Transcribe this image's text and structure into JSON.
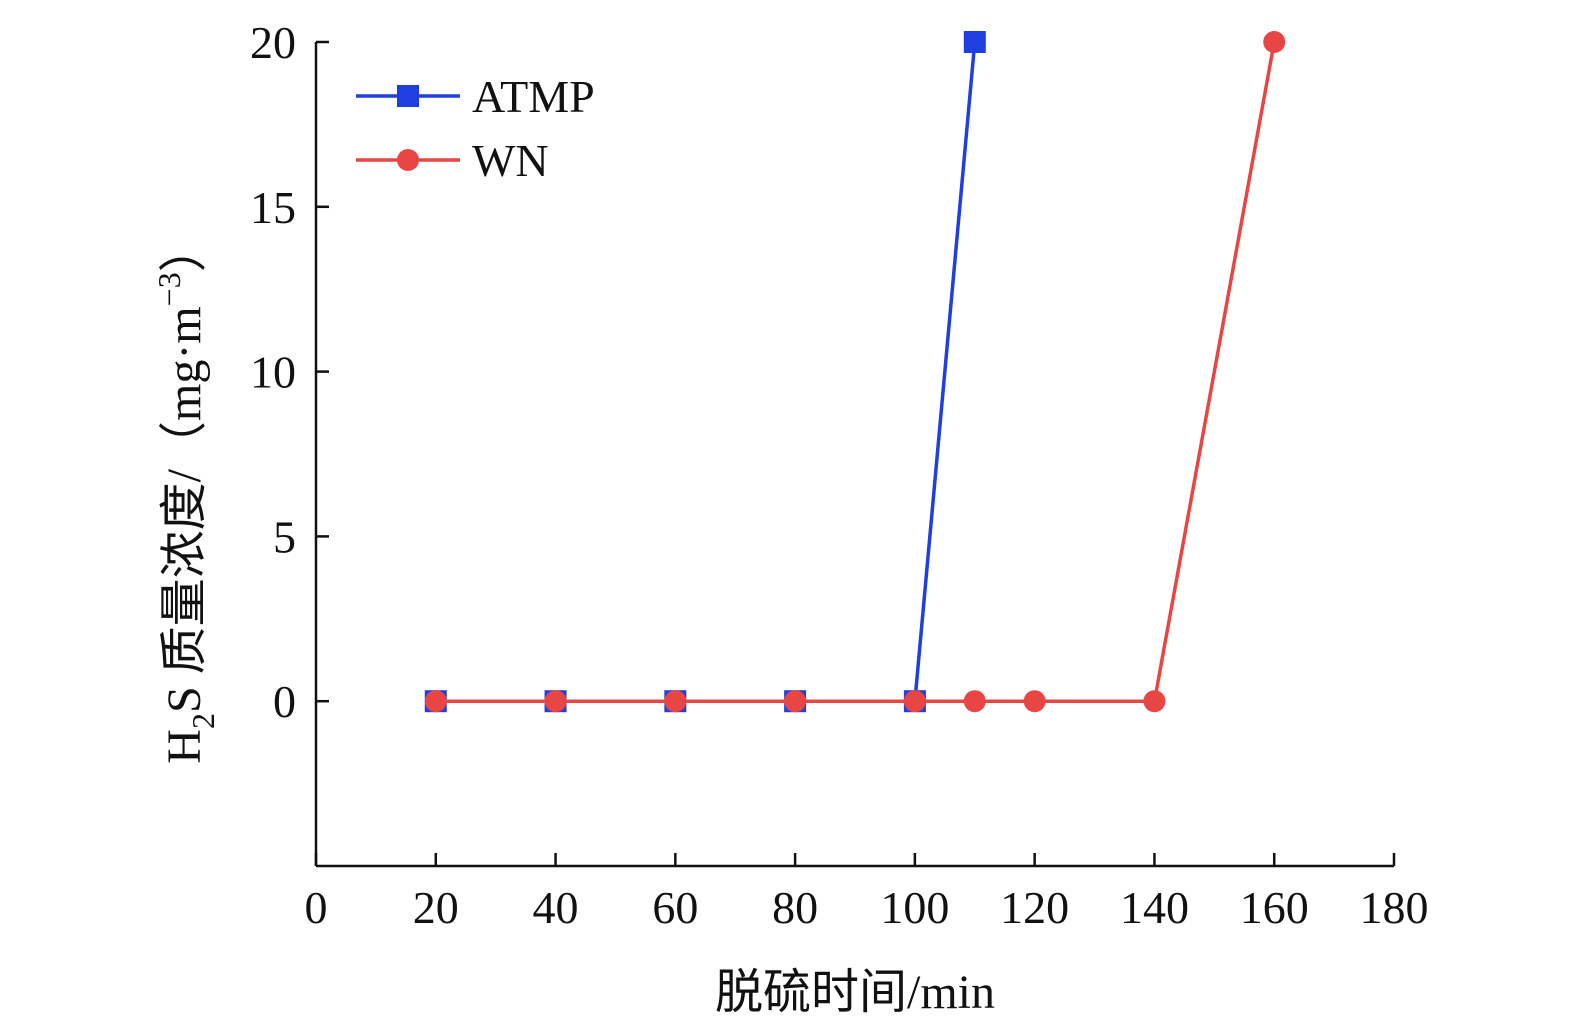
{
  "chart_data": {
    "type": "line",
    "xlabel": "脱硫时间/min",
    "ylabel": {
      "prefix": "H",
      "subscript": "2",
      "middle": "S 质量浓度/（mg·m",
      "superscript": "−3",
      "suffix": "）"
    },
    "xlim": [
      0,
      180
    ],
    "ylim": [
      -5,
      20
    ],
    "x_ticks": [
      0,
      20,
      40,
      60,
      80,
      100,
      120,
      140,
      160,
      180
    ],
    "y_ticks": [
      0,
      5,
      10,
      15,
      20
    ],
    "grid": false,
    "legend_position": "top-left",
    "series": [
      {
        "name": "ATMP",
        "color": "#1f3fe0",
        "marker": "square",
        "x": [
          20,
          40,
          60,
          80,
          100,
          110
        ],
        "y": [
          0,
          0,
          0,
          0,
          0,
          20
        ]
      },
      {
        "name": "WN",
        "color": "#e84545",
        "marker": "circle",
        "x": [
          20,
          40,
          60,
          80,
          100,
          110,
          120,
          140,
          160
        ],
        "y": [
          0,
          0,
          0,
          0,
          0,
          0,
          0,
          0,
          20
        ]
      }
    ]
  }
}
